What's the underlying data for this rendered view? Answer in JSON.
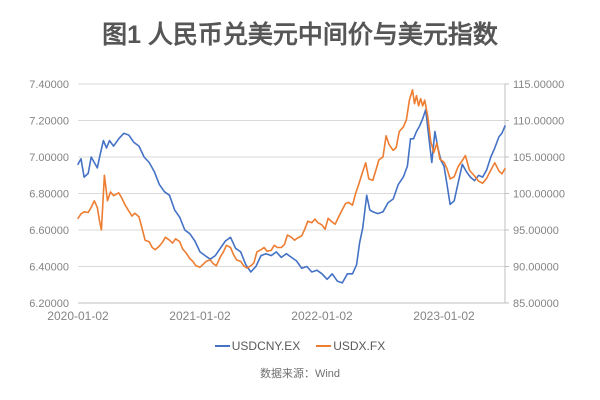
{
  "title": "图1 人民币兑美元中间价与美元指数",
  "source_note": "数据来源：Wind",
  "legend": [
    {
      "label": "USDCNY.EX",
      "color": "#4472c4"
    },
    {
      "label": "USDX.FX",
      "color": "#ed7d31"
    }
  ],
  "chart_data": {
    "type": "line",
    "title": "图1 人民币兑美元中间价与美元指数",
    "legend_position": "bottom",
    "grid": {
      "horizontal": true,
      "color": "#d9d9d9",
      "axis_color": "#bfbfbf"
    },
    "x_axis": {
      "range_months": [
        0,
        42
      ],
      "tick_months": [
        0,
        12,
        24,
        36
      ],
      "tick_labels": [
        "2020-01-02",
        "2021-01-02",
        "2022-01-02",
        "2023-01-02"
      ]
    },
    "left_axis": {
      "series": "USDCNY.EX",
      "min": 6.2,
      "max": 7.4,
      "tick_labels": [
        "7.40000",
        "7.20000",
        "7.00000",
        "6.80000",
        "6.60000",
        "6.40000",
        "6.20000"
      ]
    },
    "right_axis": {
      "series": "USDX.FX",
      "min": 85,
      "max": 115,
      "tick_labels": [
        "115.00000",
        "110.00000",
        "105.00000",
        "100.00000",
        "95.00000",
        "90.00000",
        "85.00000"
      ]
    },
    "series": [
      {
        "name": "USDCNY.EX",
        "axis": "left",
        "color": "#4472c4",
        "points": [
          [
            0,
            6.96
          ],
          [
            0.3,
            6.99
          ],
          [
            0.6,
            6.89
          ],
          [
            1,
            6.91
          ],
          [
            1.3,
            7.0
          ],
          [
            1.6,
            6.97
          ],
          [
            1.9,
            6.94
          ],
          [
            2.2,
            7.02
          ],
          [
            2.5,
            7.09
          ],
          [
            2.8,
            7.05
          ],
          [
            3.1,
            7.09
          ],
          [
            3.5,
            7.06
          ],
          [
            4,
            7.1
          ],
          [
            4.5,
            7.13
          ],
          [
            5,
            7.12
          ],
          [
            5.5,
            7.08
          ],
          [
            6,
            7.06
          ],
          [
            6.5,
            7.0
          ],
          [
            7,
            6.97
          ],
          [
            7.5,
            6.92
          ],
          [
            8,
            6.85
          ],
          [
            8.5,
            6.81
          ],
          [
            9,
            6.79
          ],
          [
            9.5,
            6.71
          ],
          [
            10,
            6.67
          ],
          [
            10.5,
            6.6
          ],
          [
            11,
            6.58
          ],
          [
            11.5,
            6.54
          ],
          [
            12,
            6.48
          ],
          [
            12.5,
            6.46
          ],
          [
            13,
            6.44
          ],
          [
            13.5,
            6.46
          ],
          [
            14,
            6.5
          ],
          [
            14.5,
            6.54
          ],
          [
            15,
            6.56
          ],
          [
            15.5,
            6.5
          ],
          [
            16,
            6.48
          ],
          [
            16.5,
            6.41
          ],
          [
            17,
            6.37
          ],
          [
            17.5,
            6.4
          ],
          [
            18,
            6.46
          ],
          [
            18.5,
            6.47
          ],
          [
            19,
            6.46
          ],
          [
            19.5,
            6.48
          ],
          [
            20,
            6.45
          ],
          [
            20.5,
            6.47
          ],
          [
            21,
            6.45
          ],
          [
            21.5,
            6.43
          ],
          [
            22,
            6.39
          ],
          [
            22.5,
            6.4
          ],
          [
            23,
            6.37
          ],
          [
            23.5,
            6.38
          ],
          [
            24,
            6.36
          ],
          [
            24.5,
            6.33
          ],
          [
            25,
            6.36
          ],
          [
            25.5,
            6.32
          ],
          [
            26,
            6.31
          ],
          [
            26.5,
            6.36
          ],
          [
            27,
            6.36
          ],
          [
            27.4,
            6.41
          ],
          [
            27.7,
            6.53
          ],
          [
            28,
            6.61
          ],
          [
            28.4,
            6.79
          ],
          [
            28.7,
            6.71
          ],
          [
            29,
            6.7
          ],
          [
            29.5,
            6.69
          ],
          [
            30,
            6.7
          ],
          [
            30.5,
            6.75
          ],
          [
            31,
            6.77
          ],
          [
            31.5,
            6.85
          ],
          [
            32,
            6.89
          ],
          [
            32.4,
            6.95
          ],
          [
            32.7,
            7.1
          ],
          [
            33,
            7.1
          ],
          [
            33.3,
            7.14
          ],
          [
            33.6,
            7.17
          ],
          [
            33.9,
            7.21
          ],
          [
            34.2,
            7.26
          ],
          [
            34.5,
            7.11
          ],
          [
            34.8,
            6.97
          ],
          [
            35.1,
            7.14
          ],
          [
            35.4,
            7.05
          ],
          [
            35.7,
            6.98
          ],
          [
            36,
            6.95
          ],
          [
            36.3,
            6.85
          ],
          [
            36.6,
            6.74
          ],
          [
            37,
            6.76
          ],
          [
            37.4,
            6.86
          ],
          [
            37.8,
            6.96
          ],
          [
            38.2,
            6.92
          ],
          [
            38.6,
            6.89
          ],
          [
            39,
            6.87
          ],
          [
            39.4,
            6.9
          ],
          [
            39.8,
            6.89
          ],
          [
            40.2,
            6.93
          ],
          [
            40.6,
            7.0
          ],
          [
            41,
            7.05
          ],
          [
            41.4,
            7.11
          ],
          [
            41.7,
            7.13
          ],
          [
            42,
            7.17
          ]
        ]
      },
      {
        "name": "USDX.FX",
        "axis": "right",
        "color": "#ed7d31",
        "points": [
          [
            0,
            96.6
          ],
          [
            0.3,
            97.2
          ],
          [
            0.6,
            97.5
          ],
          [
            1,
            97.4
          ],
          [
            1.3,
            98.1
          ],
          [
            1.6,
            99.0
          ],
          [
            1.9,
            98.1
          ],
          [
            2.1,
            96.4
          ],
          [
            2.3,
            95.0
          ],
          [
            2.6,
            102.5
          ],
          [
            2.9,
            99.0
          ],
          [
            3.2,
            100.2
          ],
          [
            3.5,
            99.7
          ],
          [
            4,
            100.1
          ],
          [
            4.3,
            99.4
          ],
          [
            4.6,
            98.5
          ],
          [
            5,
            97.6
          ],
          [
            5.3,
            96.9
          ],
          [
            5.6,
            97.3
          ],
          [
            6,
            96.8
          ],
          [
            6.3,
            95.2
          ],
          [
            6.6,
            93.6
          ],
          [
            7,
            93.4
          ],
          [
            7.3,
            92.6
          ],
          [
            7.6,
            92.3
          ],
          [
            8,
            92.8
          ],
          [
            8.3,
            93.3
          ],
          [
            8.6,
            94.0
          ],
          [
            9,
            93.6
          ],
          [
            9.3,
            93.2
          ],
          [
            9.6,
            93.8
          ],
          [
            10,
            93.4
          ],
          [
            10.3,
            92.4
          ],
          [
            10.6,
            91.9
          ],
          [
            11,
            91.1
          ],
          [
            11.3,
            90.7
          ],
          [
            11.6,
            90.1
          ],
          [
            12,
            89.9
          ],
          [
            12.3,
            90.3
          ],
          [
            12.6,
            90.7
          ],
          [
            13,
            90.9
          ],
          [
            13.3,
            90.4
          ],
          [
            13.6,
            90.1
          ],
          [
            14,
            91.3
          ],
          [
            14.3,
            92.0
          ],
          [
            14.6,
            92.9
          ],
          [
            15,
            92.6
          ],
          [
            15.3,
            91.6
          ],
          [
            15.6,
            90.9
          ],
          [
            16,
            90.7
          ],
          [
            16.3,
            90.1
          ],
          [
            16.6,
            89.8
          ],
          [
            17,
            90.1
          ],
          [
            17.3,
            90.5
          ],
          [
            17.6,
            92.0
          ],
          [
            18,
            92.3
          ],
          [
            18.3,
            92.6
          ],
          [
            18.6,
            92.1
          ],
          [
            19,
            92.2
          ],
          [
            19.3,
            92.9
          ],
          [
            19.6,
            92.6
          ],
          [
            20,
            92.6
          ],
          [
            20.3,
            93.0
          ],
          [
            20.6,
            94.3
          ],
          [
            21,
            94.0
          ],
          [
            21.3,
            93.6
          ],
          [
            21.6,
            93.9
          ],
          [
            22,
            94.2
          ],
          [
            22.3,
            95.1
          ],
          [
            22.6,
            96.2
          ],
          [
            23,
            96.0
          ],
          [
            23.3,
            96.5
          ],
          [
            23.6,
            96.0
          ],
          [
            24,
            95.7
          ],
          [
            24.3,
            95.1
          ],
          [
            24.6,
            96.6
          ],
          [
            25,
            96.1
          ],
          [
            25.3,
            95.8
          ],
          [
            25.6,
            96.7
          ],
          [
            26,
            97.8
          ],
          [
            26.3,
            98.6
          ],
          [
            26.6,
            98.8
          ],
          [
            27,
            98.4
          ],
          [
            27.3,
            100.0
          ],
          [
            27.6,
            101.2
          ],
          [
            28,
            103.0
          ],
          [
            28.3,
            104.2
          ],
          [
            28.6,
            102.0
          ],
          [
            29,
            101.8
          ],
          [
            29.3,
            103.2
          ],
          [
            29.6,
            104.6
          ],
          [
            30,
            105.0
          ],
          [
            30.3,
            107.9
          ],
          [
            30.6,
            106.7
          ],
          [
            31,
            105.9
          ],
          [
            31.3,
            106.3
          ],
          [
            31.6,
            108.5
          ],
          [
            32,
            109.1
          ],
          [
            32.3,
            110.1
          ],
          [
            32.6,
            112.8
          ],
          [
            32.9,
            114.2
          ],
          [
            33.1,
            112.3
          ],
          [
            33.3,
            113.4
          ],
          [
            33.5,
            112.0
          ],
          [
            33.7,
            113.0
          ],
          [
            33.9,
            112.0
          ],
          [
            34.1,
            112.8
          ],
          [
            34.4,
            110.6
          ],
          [
            34.7,
            107.1
          ],
          [
            35,
            105.6
          ],
          [
            35.3,
            106.9
          ],
          [
            35.6,
            104.7
          ],
          [
            36,
            104.3
          ],
          [
            36.3,
            103.4
          ],
          [
            36.6,
            102.0
          ],
          [
            37,
            102.3
          ],
          [
            37.4,
            103.7
          ],
          [
            37.8,
            104.5
          ],
          [
            38.1,
            105.2
          ],
          [
            38.5,
            103.2
          ],
          [
            39,
            102.4
          ],
          [
            39.4,
            101.7
          ],
          [
            39.8,
            101.4
          ],
          [
            40.2,
            102.1
          ],
          [
            40.6,
            103.2
          ],
          [
            41,
            104.2
          ],
          [
            41.4,
            103.1
          ],
          [
            41.7,
            102.7
          ],
          [
            42,
            103.4
          ]
        ]
      }
    ]
  }
}
